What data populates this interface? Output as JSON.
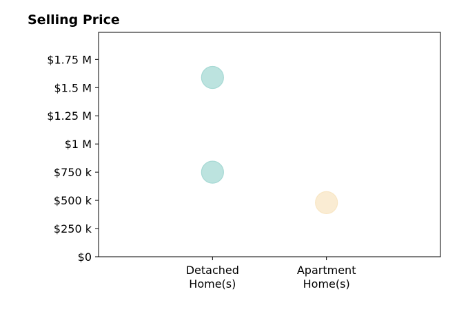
{
  "chart_data": {
    "type": "scatter",
    "title": "Selling Price",
    "xlabel": "",
    "ylabel": "",
    "categories": [
      [
        "Detached",
        "Home(s)"
      ],
      [
        "Apartment",
        "Home(s)"
      ]
    ],
    "xlim": [
      -1,
      2
    ],
    "ylim": [
      0,
      1990000
    ],
    "yticks": [
      0,
      250000,
      500000,
      750000,
      1000000,
      1250000,
      1500000,
      1750000
    ],
    "yticklabels": [
      "$0",
      "$250 k",
      "$500 k",
      "$750 k",
      "$1 M",
      "$1.25 M",
      "$1.5 M",
      "$1.75 M"
    ],
    "grid": false,
    "series": [
      {
        "category": 0,
        "color": "#a6d9d4",
        "values": [
          1590000,
          750000
        ]
      },
      {
        "category": 1,
        "color": "#f8e6c4",
        "values": [
          480000
        ]
      }
    ]
  }
}
